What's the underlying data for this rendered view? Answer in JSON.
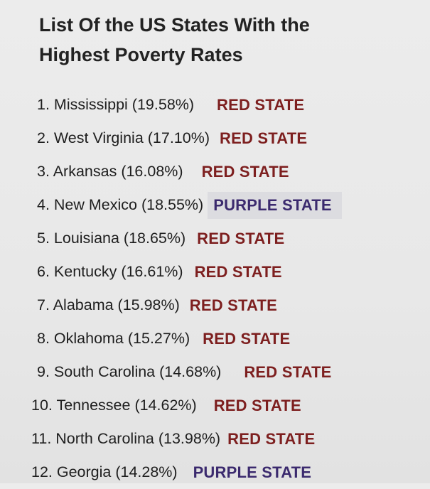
{
  "title_line1": "List Of the US States With the",
  "title_line2": "Highest Poverty Rates",
  "colors": {
    "red": "#7d1f1f",
    "purple": "#3b2a6e",
    "highlight": "#dcdce0"
  },
  "items": [
    {
      "text": "1. Mississippi (19.58%)",
      "tag": "RED STATE",
      "kind": "red"
    },
    {
      "text": "2. West Virginia (17.10%)",
      "tag": "RED STATE",
      "kind": "red"
    },
    {
      "text": "3. Arkansas (16.08%)",
      "tag": "RED STATE",
      "kind": "red"
    },
    {
      "text": "4. New Mexico (18.55%)",
      "tag": "PURPLE STATE",
      "kind": "purple"
    },
    {
      "text": "5. Louisiana (18.65%)",
      "tag": "RED STATE",
      "kind": "red"
    },
    {
      "text": "6. Kentucky (16.61%)",
      "tag": "RED STATE",
      "kind": "red"
    },
    {
      "text": "7. Alabama (15.98%)",
      "tag": "RED STATE",
      "kind": "red"
    },
    {
      "text": "8. Oklahoma (15.27%)",
      "tag": "RED STATE",
      "kind": "red"
    },
    {
      "text": "9. South Carolina (14.68%)",
      "tag": "RED STATE",
      "kind": "red"
    },
    {
      "text": "10. Tennessee (14.62%)",
      "tag": "RED STATE",
      "kind": "red"
    },
    {
      "text": "11. North Carolina (13.98%)",
      "tag": "RED STATE",
      "kind": "red"
    },
    {
      "text": "12. Georgia (14.28%)",
      "tag": "PURPLE STATE",
      "kind": "purple"
    }
  ]
}
